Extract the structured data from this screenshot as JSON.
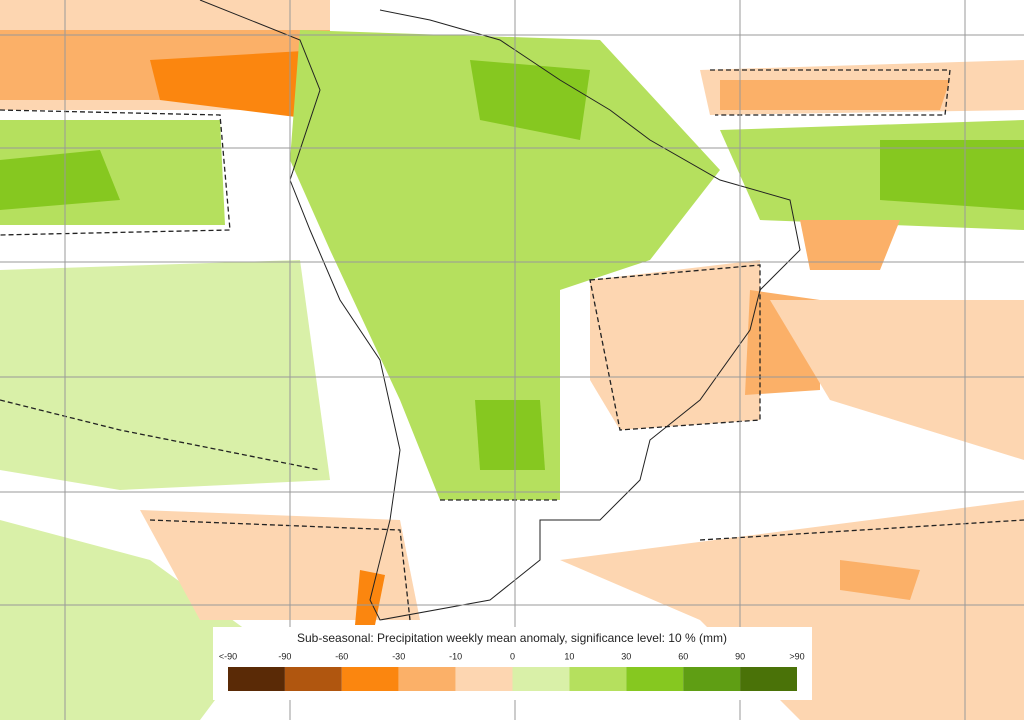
{
  "legend": {
    "title": "Sub-seasonal: Precipitation weekly mean anomaly, significance level: 10 % (mm)",
    "labels": [
      "<-90",
      "-90",
      "-60",
      "-30",
      "-10",
      "0",
      "10",
      "30",
      "60",
      "90",
      ">90"
    ],
    "colors": [
      "#5a2a06",
      "#b0560f",
      "#fb860f",
      "#fbb068",
      "#fdd6b1",
      "#d9f0a8",
      "#b5e05e",
      "#86c820",
      "#5f9e14",
      "#4a7208"
    ]
  }
}
